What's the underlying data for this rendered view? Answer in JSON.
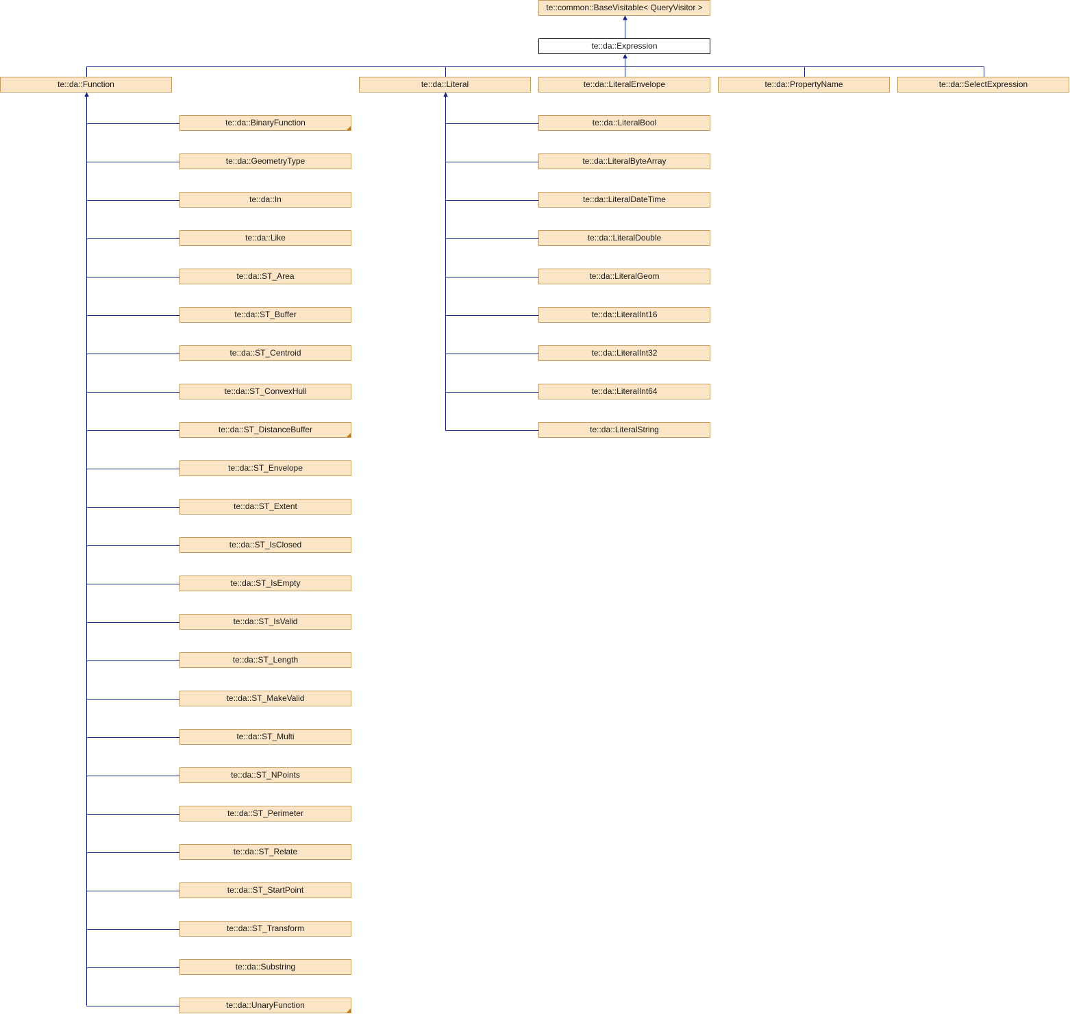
{
  "diagram": {
    "nodes": [
      {
        "id": "basevisitable",
        "label": "te::common::BaseVisitable< QueryVisitor >"
      },
      {
        "id": "expression",
        "label": "te::da::Expression",
        "current": true
      },
      {
        "id": "function",
        "label": "te::da::Function"
      },
      {
        "id": "literal",
        "label": "te::da::Literal"
      },
      {
        "id": "literalenvelope",
        "label": "te::da::LiteralEnvelope"
      },
      {
        "id": "propertyname",
        "label": "te::da::PropertyName"
      },
      {
        "id": "selectexpression",
        "label": "te::da::SelectExpression"
      },
      {
        "id": "binaryfunction",
        "label": "te::da::BinaryFunction",
        "more": true
      },
      {
        "id": "geometrytype",
        "label": "te::da::GeometryType"
      },
      {
        "id": "in",
        "label": "te::da::In"
      },
      {
        "id": "like",
        "label": "te::da::Like"
      },
      {
        "id": "st_area",
        "label": "te::da::ST_Area"
      },
      {
        "id": "st_buffer",
        "label": "te::da::ST_Buffer"
      },
      {
        "id": "st_centroid",
        "label": "te::da::ST_Centroid"
      },
      {
        "id": "st_convexhull",
        "label": "te::da::ST_ConvexHull"
      },
      {
        "id": "st_distancebuffer",
        "label": "te::da::ST_DistanceBuffer",
        "more": true
      },
      {
        "id": "st_envelope",
        "label": "te::da::ST_Envelope"
      },
      {
        "id": "st_extent",
        "label": "te::da::ST_Extent"
      },
      {
        "id": "st_isclosed",
        "label": "te::da::ST_IsClosed"
      },
      {
        "id": "st_isempty",
        "label": "te::da::ST_IsEmpty"
      },
      {
        "id": "st_isvalid",
        "label": "te::da::ST_IsValid"
      },
      {
        "id": "st_length",
        "label": "te::da::ST_Length"
      },
      {
        "id": "st_makevalid",
        "label": "te::da::ST_MakeValid"
      },
      {
        "id": "st_multi",
        "label": "te::da::ST_Multi"
      },
      {
        "id": "st_npoints",
        "label": "te::da::ST_NPoints"
      },
      {
        "id": "st_perimeter",
        "label": "te::da::ST_Perimeter"
      },
      {
        "id": "st_relate",
        "label": "te::da::ST_Relate"
      },
      {
        "id": "st_startpoint",
        "label": "te::da::ST_StartPoint"
      },
      {
        "id": "st_transform",
        "label": "te::da::ST_Transform"
      },
      {
        "id": "substring",
        "label": "te::da::Substring"
      },
      {
        "id": "unaryfunction",
        "label": "te::da::UnaryFunction",
        "more": true
      },
      {
        "id": "literalbool",
        "label": "te::da::LiteralBool"
      },
      {
        "id": "literalbytearray",
        "label": "te::da::LiteralByteArray"
      },
      {
        "id": "literaldatetime",
        "label": "te::da::LiteralDateTime"
      },
      {
        "id": "literaldouble",
        "label": "te::da::LiteralDouble"
      },
      {
        "id": "literalgeom",
        "label": "te::da::LiteralGeom"
      },
      {
        "id": "literalint16",
        "label": "te::da::LiteralInt16"
      },
      {
        "id": "literalint32",
        "label": "te::da::LiteralInt32"
      },
      {
        "id": "literalint64",
        "label": "te::da::LiteralInt64"
      },
      {
        "id": "literalstring",
        "label": "te::da::LiteralString"
      }
    ],
    "edges": [
      {
        "from": "expression",
        "to": "basevisitable"
      },
      {
        "from": "function",
        "to": "expression"
      },
      {
        "from": "literal",
        "to": "expression"
      },
      {
        "from": "literalenvelope",
        "to": "expression"
      },
      {
        "from": "propertyname",
        "to": "expression"
      },
      {
        "from": "selectexpression",
        "to": "expression"
      },
      {
        "from": "binaryfunction",
        "to": "function"
      },
      {
        "from": "geometrytype",
        "to": "function"
      },
      {
        "from": "in",
        "to": "function"
      },
      {
        "from": "like",
        "to": "function"
      },
      {
        "from": "st_area",
        "to": "function"
      },
      {
        "from": "st_buffer",
        "to": "function"
      },
      {
        "from": "st_centroid",
        "to": "function"
      },
      {
        "from": "st_convexhull",
        "to": "function"
      },
      {
        "from": "st_distancebuffer",
        "to": "function"
      },
      {
        "from": "st_envelope",
        "to": "function"
      },
      {
        "from": "st_extent",
        "to": "function"
      },
      {
        "from": "st_isclosed",
        "to": "function"
      },
      {
        "from": "st_isempty",
        "to": "function"
      },
      {
        "from": "st_isvalid",
        "to": "function"
      },
      {
        "from": "st_length",
        "to": "function"
      },
      {
        "from": "st_makevalid",
        "to": "function"
      },
      {
        "from": "st_multi",
        "to": "function"
      },
      {
        "from": "st_npoints",
        "to": "function"
      },
      {
        "from": "st_perimeter",
        "to": "function"
      },
      {
        "from": "st_relate",
        "to": "function"
      },
      {
        "from": "st_startpoint",
        "to": "function"
      },
      {
        "from": "st_transform",
        "to": "function"
      },
      {
        "from": "substring",
        "to": "function"
      },
      {
        "from": "unaryfunction",
        "to": "function"
      },
      {
        "from": "literalbool",
        "to": "literal"
      },
      {
        "from": "literalbytearray",
        "to": "literal"
      },
      {
        "from": "literaldatetime",
        "to": "literal"
      },
      {
        "from": "literaldouble",
        "to": "literal"
      },
      {
        "from": "literalgeom",
        "to": "literal"
      },
      {
        "from": "literalint16",
        "to": "literal"
      },
      {
        "from": "literalint32",
        "to": "literal"
      },
      {
        "from": "literalint64",
        "to": "literal"
      },
      {
        "from": "literalstring",
        "to": "literal"
      }
    ]
  }
}
